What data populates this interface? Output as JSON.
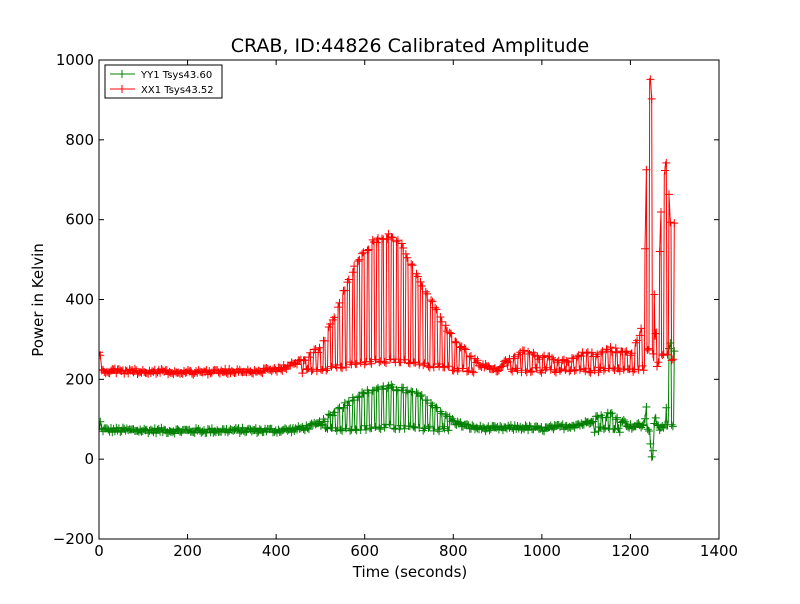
{
  "chart_data": {
    "type": "line",
    "title": "CRAB, ID:44826 Calibrated Amplitude",
    "xlabel": "Time (seconds)",
    "ylabel": "Power in Kelvin",
    "xlim": [
      0,
      1400
    ],
    "ylim": [
      -200,
      1000
    ],
    "x_ticks": [
      0,
      200,
      400,
      600,
      800,
      1000,
      1200,
      1400
    ],
    "y_ticks": [
      -200,
      0,
      200,
      400,
      600,
      800,
      1000
    ],
    "grid": false,
    "legend": {
      "placement": "top-left",
      "entries": [
        "YY1 Tsys43.60",
        "XX1 Tsys43.52"
      ]
    },
    "series": [
      {
        "name": "YY1 Tsys43.60",
        "color": "#008000",
        "marker": "plus",
        "baseline": 72,
        "points": [
          [
            0,
            72
          ],
          [
            3,
            92
          ],
          [
            6,
            75
          ],
          [
            20,
            73
          ],
          [
            100,
            72
          ],
          [
            200,
            71
          ],
          [
            300,
            72
          ],
          [
            400,
            72
          ],
          [
            440,
            74
          ],
          [
            470,
            80
          ],
          [
            490,
            85
          ],
          [
            510,
            95
          ],
          [
            520,
            110
          ],
          [
            540,
            125
          ],
          [
            560,
            140
          ],
          [
            580,
            155
          ],
          [
            600,
            165
          ],
          [
            620,
            172
          ],
          [
            640,
            178
          ],
          [
            660,
            180
          ],
          [
            680,
            175
          ],
          [
            700,
            168
          ],
          [
            720,
            160
          ],
          [
            740,
            148
          ],
          [
            760,
            130
          ],
          [
            780,
            112
          ],
          [
            800,
            95
          ],
          [
            820,
            85
          ],
          [
            850,
            78
          ],
          [
            900,
            76
          ],
          [
            950,
            80
          ],
          [
            1000,
            75
          ],
          [
            1050,
            82
          ],
          [
            1100,
            90
          ],
          [
            1130,
            110
          ],
          [
            1160,
            112
          ],
          [
            1200,
            82
          ],
          [
            1230,
            85
          ],
          [
            1240,
            150
          ],
          [
            1245,
            40
          ],
          [
            1250,
            -10
          ],
          [
            1255,
            120
          ],
          [
            1260,
            80
          ],
          [
            1270,
            75
          ],
          [
            1280,
            90
          ],
          [
            1285,
            270
          ],
          [
            1290,
            285
          ],
          [
            1295,
            280
          ],
          [
            1300,
            275
          ]
        ]
      },
      {
        "name": "XX1 Tsys43.52",
        "color": "#ff0000",
        "marker": "plus",
        "baseline": 220,
        "points": [
          [
            0,
            262
          ],
          [
            3,
            258
          ],
          [
            6,
            225
          ],
          [
            20,
            220
          ],
          [
            100,
            220
          ],
          [
            200,
            218
          ],
          [
            300,
            220
          ],
          [
            400,
            222
          ],
          [
            430,
            235
          ],
          [
            460,
            250
          ],
          [
            480,
            265
          ],
          [
            500,
            275
          ],
          [
            520,
            330
          ],
          [
            540,
            385
          ],
          [
            560,
            440
          ],
          [
            580,
            490
          ],
          [
            600,
            520
          ],
          [
            620,
            545
          ],
          [
            640,
            555
          ],
          [
            660,
            560
          ],
          [
            680,
            545
          ],
          [
            700,
            500
          ],
          [
            720,
            455
          ],
          [
            740,
            415
          ],
          [
            760,
            375
          ],
          [
            780,
            335
          ],
          [
            800,
            305
          ],
          [
            820,
            280
          ],
          [
            840,
            260
          ],
          [
            860,
            235
          ],
          [
            900,
            225
          ],
          [
            950,
            270
          ],
          [
            1000,
            255
          ],
          [
            1050,
            245
          ],
          [
            1080,
            262
          ],
          [
            1120,
            262
          ],
          [
            1150,
            275
          ],
          [
            1200,
            265
          ],
          [
            1230,
            335
          ],
          [
            1240,
            975
          ],
          [
            1245,
            950
          ],
          [
            1250,
            880
          ],
          [
            1255,
            300
          ],
          [
            1260,
            340
          ],
          [
            1270,
            650
          ],
          [
            1280,
            750
          ],
          [
            1285,
            700
          ],
          [
            1290,
            600
          ],
          [
            1295,
            560
          ],
          [
            1300,
            600
          ]
        ]
      }
    ]
  }
}
